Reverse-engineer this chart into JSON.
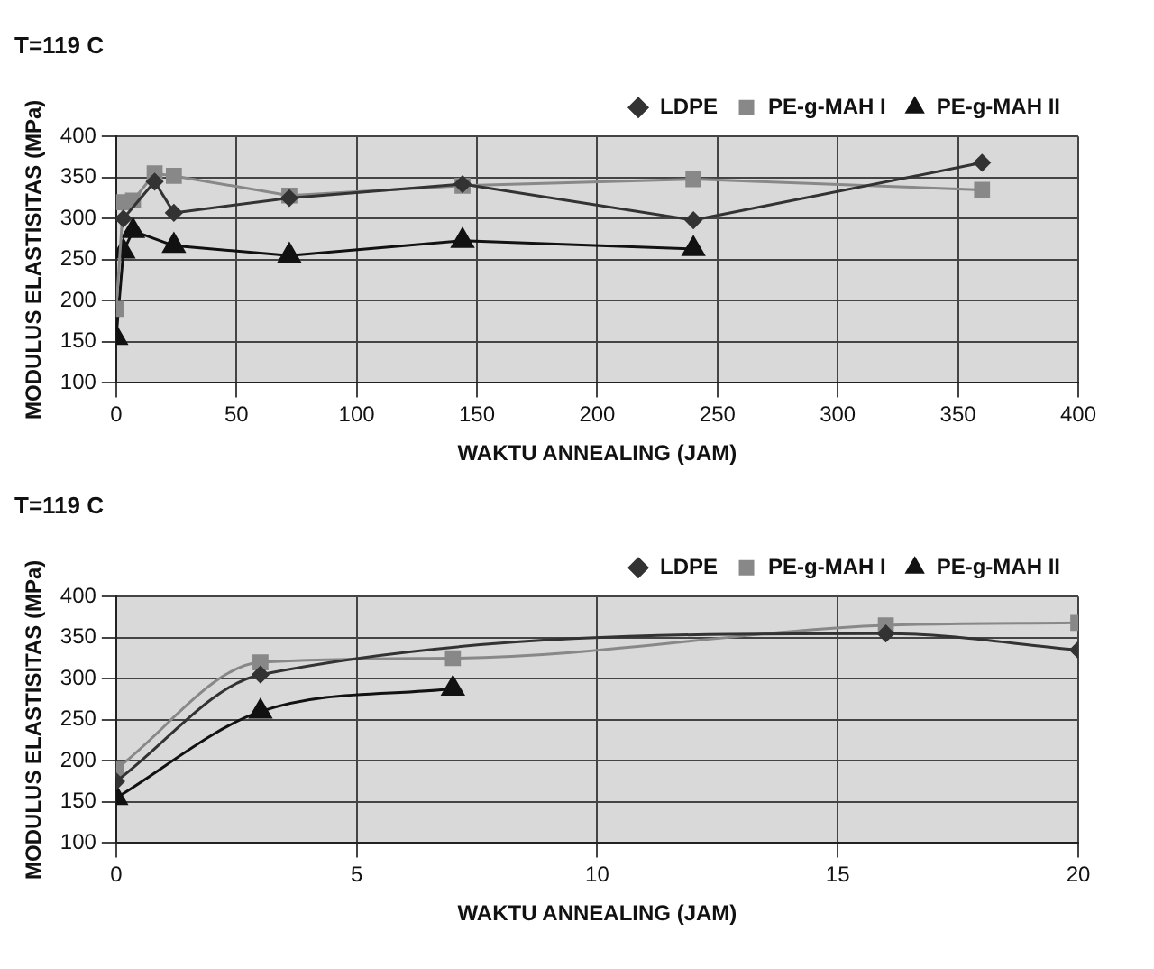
{
  "chart_data": [
    {
      "type": "line",
      "title": "T=119 C",
      "xlabel": "WAKTU ANNEALING (JAM)",
      "ylabel": "MODULUS ELASTISITAS (MPa)",
      "xlim": [
        0,
        400
      ],
      "xticks": [
        0,
        50,
        100,
        150,
        200,
        250,
        300,
        350,
        400
      ],
      "ylim": [
        100,
        400
      ],
      "yticks": [
        100,
        150,
        200,
        250,
        300,
        350,
        400
      ],
      "grid": true,
      "legend": "top right",
      "series": [
        {
          "name": "LDPE",
          "color": "#333333",
          "marker": "diamond",
          "x": [
            3,
            16,
            24,
            72,
            144,
            240,
            360
          ],
          "values": [
            300,
            345,
            307,
            325,
            342,
            298,
            368
          ]
        },
        {
          "name": "PE-g-MAH I",
          "color": "#888888",
          "marker": "square",
          "x": [
            0,
            3,
            7,
            16,
            24,
            72,
            144,
            240,
            360
          ],
          "values": [
            190,
            320,
            322,
            355,
            352,
            328,
            340,
            348,
            335
          ]
        },
        {
          "name": "PE-g-MAH II",
          "color": "#111111",
          "marker": "triangle",
          "x": [
            0,
            3,
            7,
            24,
            72,
            144,
            240
          ],
          "values": [
            155,
            260,
            285,
            267,
            255,
            273,
            263
          ]
        }
      ]
    },
    {
      "type": "line",
      "title": "T=119 C",
      "xlabel": "WAKTU ANNEALING (JAM)",
      "ylabel": "MODULUS ELASTISITAS (MPa)",
      "xlim": [
        0,
        20
      ],
      "xticks": [
        0,
        5,
        10,
        15,
        20
      ],
      "ylim": [
        100,
        400
      ],
      "yticks": [
        100,
        150,
        200,
        250,
        300,
        350,
        400
      ],
      "grid": true,
      "legend": "top right",
      "series": [
        {
          "name": "LDPE",
          "color": "#333333",
          "marker": "diamond",
          "x": [
            0,
            3,
            16,
            20
          ],
          "values": [
            175,
            305,
            355,
            335
          ]
        },
        {
          "name": "PE-g-MAH I",
          "color": "#888888",
          "marker": "square",
          "x": [
            0,
            3,
            7,
            16,
            20
          ],
          "values": [
            190,
            320,
            325,
            365,
            368
          ]
        },
        {
          "name": "PE-g-MAH II",
          "color": "#111111",
          "marker": "triangle",
          "x": [
            0,
            3,
            7
          ],
          "values": [
            155,
            260,
            288
          ]
        }
      ]
    }
  ]
}
